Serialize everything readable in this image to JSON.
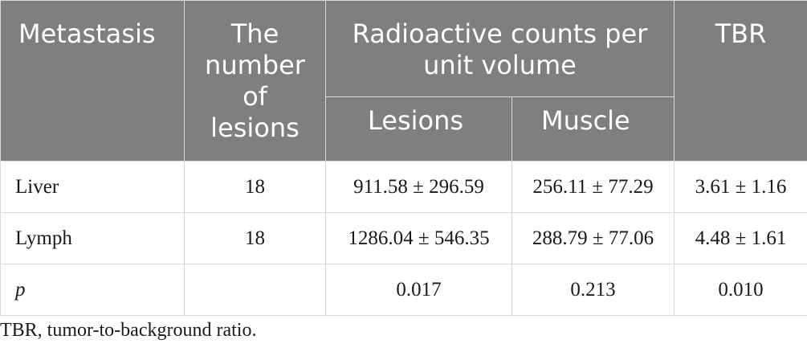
{
  "table": {
    "headers": {
      "metastasis": "Metastasis",
      "number_of_lesions": "The number of lesions",
      "radioactive_counts": "Radioactive counts per unit volume",
      "tbr": "TBR",
      "lesions": "Lesions",
      "muscle": "Muscle"
    },
    "rows": [
      {
        "label": "Liver",
        "count": "18",
        "lesions": "911.58 ± 296.59",
        "muscle": "256.11 ± 77.29",
        "tbr": "3.61 ± 1.16"
      },
      {
        "label": "Lymph",
        "count": "18",
        "lesions": "1286.04 ± 546.35",
        "muscle": "288.79 ± 77.06",
        "tbr": "4.48 ± 1.61"
      },
      {
        "label": "p",
        "count": "",
        "lesions": "0.017",
        "muscle": "0.213",
        "tbr": "0.010"
      }
    ]
  },
  "footnote": "TBR, tumor-to-background ratio.",
  "colors": {
    "header_bg": "#7f7f7e",
    "header_text": "#ffffff",
    "border": "#d9d9d9"
  }
}
